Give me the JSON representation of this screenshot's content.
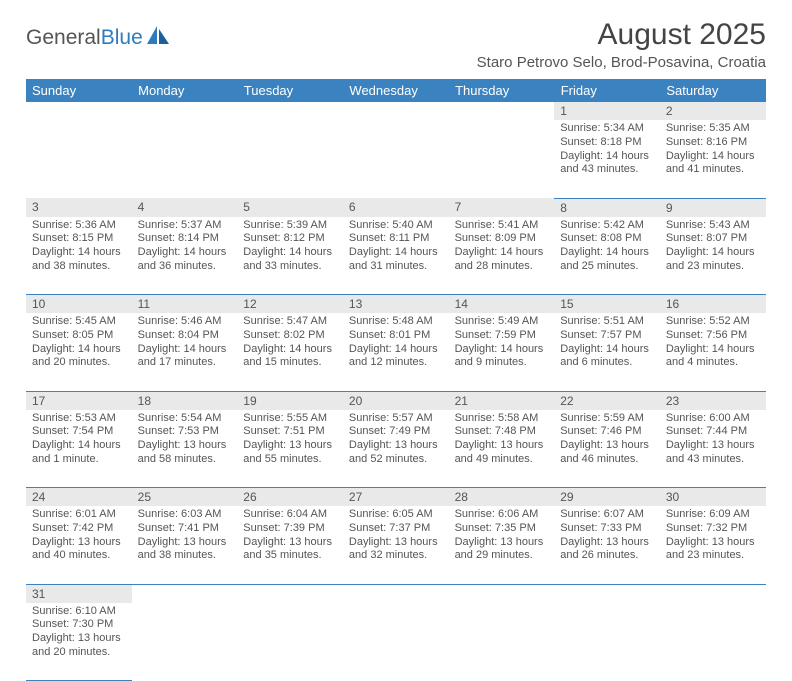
{
  "logo": {
    "text1": "General",
    "text2": "Blue",
    "icon_color": "#2f7bbf"
  },
  "header": {
    "title": "August 2025",
    "subtitle": "Staro Petrovo Selo, Brod-Posavina, Croatia"
  },
  "colors": {
    "header_bg": "#3b83c0",
    "grid_line": "#3b83c0",
    "daynum_bg": "#e9e9e9",
    "text": "#555555"
  },
  "weekdays": [
    "Sunday",
    "Monday",
    "Tuesday",
    "Wednesday",
    "Thursday",
    "Friday",
    "Saturday"
  ],
  "weeks": [
    [
      null,
      null,
      null,
      null,
      null,
      {
        "n": "1",
        "sr": "Sunrise: 5:34 AM",
        "ss": "Sunset: 8:18 PM",
        "d1": "Daylight: 14 hours",
        "d2": "and 43 minutes."
      },
      {
        "n": "2",
        "sr": "Sunrise: 5:35 AM",
        "ss": "Sunset: 8:16 PM",
        "d1": "Daylight: 14 hours",
        "d2": "and 41 minutes."
      }
    ],
    [
      {
        "n": "3",
        "sr": "Sunrise: 5:36 AM",
        "ss": "Sunset: 8:15 PM",
        "d1": "Daylight: 14 hours",
        "d2": "and 38 minutes."
      },
      {
        "n": "4",
        "sr": "Sunrise: 5:37 AM",
        "ss": "Sunset: 8:14 PM",
        "d1": "Daylight: 14 hours",
        "d2": "and 36 minutes."
      },
      {
        "n": "5",
        "sr": "Sunrise: 5:39 AM",
        "ss": "Sunset: 8:12 PM",
        "d1": "Daylight: 14 hours",
        "d2": "and 33 minutes."
      },
      {
        "n": "6",
        "sr": "Sunrise: 5:40 AM",
        "ss": "Sunset: 8:11 PM",
        "d1": "Daylight: 14 hours",
        "d2": "and 31 minutes."
      },
      {
        "n": "7",
        "sr": "Sunrise: 5:41 AM",
        "ss": "Sunset: 8:09 PM",
        "d1": "Daylight: 14 hours",
        "d2": "and 28 minutes."
      },
      {
        "n": "8",
        "sr": "Sunrise: 5:42 AM",
        "ss": "Sunset: 8:08 PM",
        "d1": "Daylight: 14 hours",
        "d2": "and 25 minutes."
      },
      {
        "n": "9",
        "sr": "Sunrise: 5:43 AM",
        "ss": "Sunset: 8:07 PM",
        "d1": "Daylight: 14 hours",
        "d2": "and 23 minutes."
      }
    ],
    [
      {
        "n": "10",
        "sr": "Sunrise: 5:45 AM",
        "ss": "Sunset: 8:05 PM",
        "d1": "Daylight: 14 hours",
        "d2": "and 20 minutes."
      },
      {
        "n": "11",
        "sr": "Sunrise: 5:46 AM",
        "ss": "Sunset: 8:04 PM",
        "d1": "Daylight: 14 hours",
        "d2": "and 17 minutes."
      },
      {
        "n": "12",
        "sr": "Sunrise: 5:47 AM",
        "ss": "Sunset: 8:02 PM",
        "d1": "Daylight: 14 hours",
        "d2": "and 15 minutes."
      },
      {
        "n": "13",
        "sr": "Sunrise: 5:48 AM",
        "ss": "Sunset: 8:01 PM",
        "d1": "Daylight: 14 hours",
        "d2": "and 12 minutes."
      },
      {
        "n": "14",
        "sr": "Sunrise: 5:49 AM",
        "ss": "Sunset: 7:59 PM",
        "d1": "Daylight: 14 hours",
        "d2": "and 9 minutes."
      },
      {
        "n": "15",
        "sr": "Sunrise: 5:51 AM",
        "ss": "Sunset: 7:57 PM",
        "d1": "Daylight: 14 hours",
        "d2": "and 6 minutes."
      },
      {
        "n": "16",
        "sr": "Sunrise: 5:52 AM",
        "ss": "Sunset: 7:56 PM",
        "d1": "Daylight: 14 hours",
        "d2": "and 4 minutes."
      }
    ],
    [
      {
        "n": "17",
        "sr": "Sunrise: 5:53 AM",
        "ss": "Sunset: 7:54 PM",
        "d1": "Daylight: 14 hours",
        "d2": "and 1 minute."
      },
      {
        "n": "18",
        "sr": "Sunrise: 5:54 AM",
        "ss": "Sunset: 7:53 PM",
        "d1": "Daylight: 13 hours",
        "d2": "and 58 minutes."
      },
      {
        "n": "19",
        "sr": "Sunrise: 5:55 AM",
        "ss": "Sunset: 7:51 PM",
        "d1": "Daylight: 13 hours",
        "d2": "and 55 minutes."
      },
      {
        "n": "20",
        "sr": "Sunrise: 5:57 AM",
        "ss": "Sunset: 7:49 PM",
        "d1": "Daylight: 13 hours",
        "d2": "and 52 minutes."
      },
      {
        "n": "21",
        "sr": "Sunrise: 5:58 AM",
        "ss": "Sunset: 7:48 PM",
        "d1": "Daylight: 13 hours",
        "d2": "and 49 minutes."
      },
      {
        "n": "22",
        "sr": "Sunrise: 5:59 AM",
        "ss": "Sunset: 7:46 PM",
        "d1": "Daylight: 13 hours",
        "d2": "and 46 minutes."
      },
      {
        "n": "23",
        "sr": "Sunrise: 6:00 AM",
        "ss": "Sunset: 7:44 PM",
        "d1": "Daylight: 13 hours",
        "d2": "and 43 minutes."
      }
    ],
    [
      {
        "n": "24",
        "sr": "Sunrise: 6:01 AM",
        "ss": "Sunset: 7:42 PM",
        "d1": "Daylight: 13 hours",
        "d2": "and 40 minutes."
      },
      {
        "n": "25",
        "sr": "Sunrise: 6:03 AM",
        "ss": "Sunset: 7:41 PM",
        "d1": "Daylight: 13 hours",
        "d2": "and 38 minutes."
      },
      {
        "n": "26",
        "sr": "Sunrise: 6:04 AM",
        "ss": "Sunset: 7:39 PM",
        "d1": "Daylight: 13 hours",
        "d2": "and 35 minutes."
      },
      {
        "n": "27",
        "sr": "Sunrise: 6:05 AM",
        "ss": "Sunset: 7:37 PM",
        "d1": "Daylight: 13 hours",
        "d2": "and 32 minutes."
      },
      {
        "n": "28",
        "sr": "Sunrise: 6:06 AM",
        "ss": "Sunset: 7:35 PM",
        "d1": "Daylight: 13 hours",
        "d2": "and 29 minutes."
      },
      {
        "n": "29",
        "sr": "Sunrise: 6:07 AM",
        "ss": "Sunset: 7:33 PM",
        "d1": "Daylight: 13 hours",
        "d2": "and 26 minutes."
      },
      {
        "n": "30",
        "sr": "Sunrise: 6:09 AM",
        "ss": "Sunset: 7:32 PM",
        "d1": "Daylight: 13 hours",
        "d2": "and 23 minutes."
      }
    ],
    [
      {
        "n": "31",
        "sr": "Sunrise: 6:10 AM",
        "ss": "Sunset: 7:30 PM",
        "d1": "Daylight: 13 hours",
        "d2": "and 20 minutes."
      },
      null,
      null,
      null,
      null,
      null,
      null
    ]
  ]
}
